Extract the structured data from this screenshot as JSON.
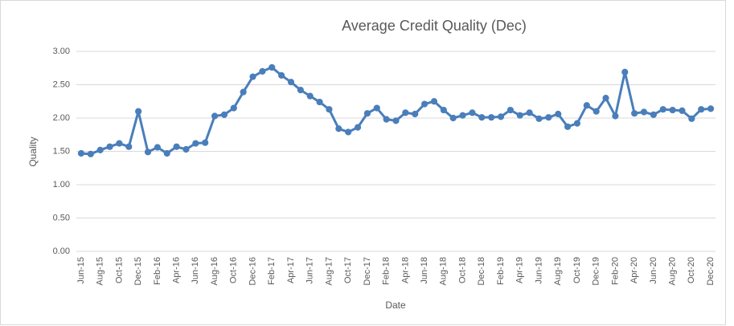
{
  "chart_data": {
    "type": "line",
    "title": "Average Credit Quality (Dec)",
    "x_label": "Date",
    "y_label": "Quality",
    "categories": [
      "Jun-15",
      null,
      "Aug-15",
      null,
      "Oct-15",
      null,
      "Dec-15",
      null,
      "Feb-16",
      null,
      "Apr-16",
      null,
      "Jun-16",
      null,
      "Aug-16",
      null,
      "Oct-16",
      null,
      "Dec-16",
      null,
      "Feb-17",
      null,
      "Apr-17",
      null,
      "Jun-17",
      null,
      "Aug-17",
      null,
      "Oct-17",
      null,
      "Dec-17",
      null,
      "Feb-18",
      null,
      "Apr-18",
      null,
      "Jun-18",
      null,
      "Aug-18",
      null,
      "Oct-18",
      null,
      "Dec-18",
      null,
      "Feb-19",
      null,
      "Apr-19",
      null,
      "Jun-19",
      null,
      "Aug-19",
      null,
      "Oct-19",
      null,
      "Dec-19",
      null,
      "Feb-20",
      null,
      "Apr-20",
      null,
      "Jun-20",
      null,
      "Aug-20",
      null,
      "Oct-20",
      null,
      "Dec-20"
    ],
    "values": [
      1.47,
      1.46,
      1.52,
      1.57,
      1.62,
      1.57,
      2.1,
      1.49,
      1.56,
      1.47,
      1.57,
      1.53,
      1.62,
      1.63,
      2.03,
      2.05,
      2.15,
      2.39,
      2.62,
      2.7,
      2.76,
      2.64,
      2.54,
      2.42,
      2.33,
      2.24,
      2.13,
      1.84,
      1.79,
      1.86,
      2.07,
      2.15,
      1.98,
      1.96,
      2.08,
      2.06,
      2.21,
      2.25,
      2.12,
      2.0,
      2.04,
      2.08,
      2.01,
      2.01,
      2.02,
      2.12,
      2.04,
      2.08,
      1.99,
      2.01,
      2.06,
      1.87,
      1.92,
      2.19,
      2.1,
      2.3,
      2.03,
      2.69,
      2.07,
      2.09,
      2.05,
      2.13,
      2.12,
      2.11,
      1.99,
      2.13,
      2.14
    ],
    "color": "#4a7ebb",
    "ylim": [
      0,
      3
    ],
    "yticks": [
      {
        "value": 0,
        "label": "0.00"
      },
      {
        "value": 0.5,
        "label": "0.50"
      },
      {
        "value": 1,
        "label": "1.00"
      },
      {
        "value": 1.5,
        "label": "1.50"
      },
      {
        "value": 2,
        "label": "2.00"
      },
      {
        "value": 2.5,
        "label": "2.50"
      },
      {
        "value": 3,
        "label": "3.00"
      }
    ],
    "grid": true
  }
}
